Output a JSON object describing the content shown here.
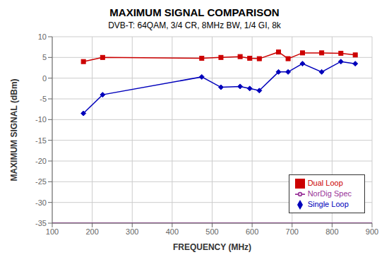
{
  "chart_data": {
    "type": "line",
    "title": "MAXIMUM SIGNAL COMPARISON",
    "subtitle": "DVB-T: 64QAM, 3/4 CR, 8MHz BW, 1/4 GI, 8k",
    "x_label": "FREQUENCY (MHz)",
    "y_label": "MAXIMUM SIGNAL (dBm)",
    "xlim": [
      100,
      900
    ],
    "ylim": [
      -35,
      10
    ],
    "xticks": [
      100,
      200,
      300,
      400,
      500,
      600,
      700,
      800,
      900
    ],
    "yticks": [
      -35,
      -30,
      -25,
      -20,
      -15,
      -10,
      -5,
      0,
      5,
      10
    ],
    "grid": true,
    "legend": "lower right",
    "series": [
      {
        "name": "Single Loop",
        "color": "#0000bb",
        "marker": "diamond",
        "x": [
          178,
          226,
          474,
          522,
          570,
          594,
          618,
          666,
          690,
          726,
          774,
          822,
          858
        ],
        "values": [
          -8.5,
          -4.0,
          0.3,
          -2.2,
          -2.0,
          -2.5,
          -3.0,
          1.5,
          1.5,
          3.5,
          1.5,
          4.0,
          3.5
        ]
      },
      {
        "name": "Dual Loop",
        "color": "#cc0000",
        "marker": "square",
        "x": [
          178,
          226,
          474,
          522,
          570,
          594,
          618,
          666,
          690,
          726,
          774,
          822,
          858
        ],
        "values": [
          4.0,
          5.0,
          4.8,
          5.0,
          5.2,
          4.8,
          4.7,
          6.3,
          4.7,
          6.1,
          6.1,
          6.0,
          5.6
        ]
      },
      {
        "name": "NorDig Spec",
        "color": "#993399",
        "marker": "none",
        "x": [
          100,
          900
        ],
        "values": [
          -35,
          -35
        ]
      }
    ]
  }
}
